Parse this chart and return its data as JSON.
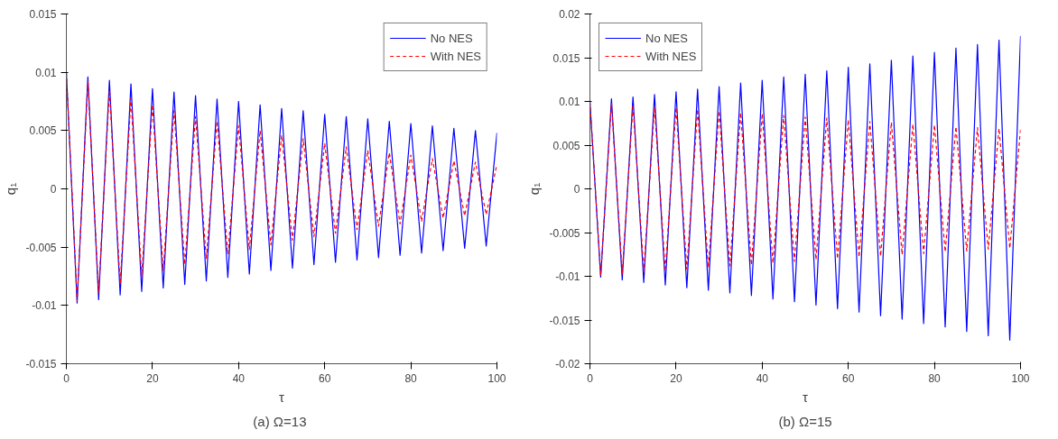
{
  "chart_data": [
    {
      "type": "line",
      "xlabel": "τ",
      "ylabel": "q₁",
      "annotations": [
        "(a)  Ω=13"
      ],
      "legend": "top right",
      "grid": false,
      "x": [
        0,
        2.5,
        5,
        7.5,
        10,
        12.5,
        15,
        17.5,
        20,
        22.5,
        25,
        27.5,
        30,
        32.5,
        35,
        37.5,
        40,
        42.5,
        45,
        47.5,
        50,
        52.5,
        55,
        57.5,
        60,
        62.5,
        65,
        67.5,
        70,
        72.5,
        75,
        77.5,
        80,
        82.5,
        85,
        87.5,
        90,
        92.5,
        95,
        97.5,
        100
      ],
      "xlim": [
        0,
        100
      ],
      "xticks": [
        0,
        20,
        40,
        60,
        80,
        100
      ],
      "ylim": [
        -0.015,
        0.015
      ],
      "yticks": [
        -0.015,
        -0.01,
        -0.005,
        0,
        0.005,
        0.01,
        0.015
      ],
      "series": [
        {
          "name": "No NES",
          "color": "#0000ff",
          "line_style": "solid",
          "values": [
            0.01,
            -0.0098,
            0.0096,
            -0.0095,
            0.0093,
            -0.0091,
            0.009,
            -0.0088,
            0.0086,
            -0.0085,
            0.0083,
            -0.0082,
            0.008,
            -0.0079,
            0.0077,
            -0.0076,
            0.0075,
            -0.0073,
            0.0072,
            -0.007,
            0.0069,
            -0.0068,
            0.0067,
            -0.0065,
            0.0064,
            -0.0063,
            0.0062,
            -0.0061,
            0.006,
            -0.0059,
            0.0058,
            -0.0057,
            0.0056,
            -0.0055,
            0.0054,
            -0.0053,
            0.0052,
            -0.0051,
            0.005,
            -0.0049,
            0.0048
          ]
        },
        {
          "name": "With NES",
          "color": "#ff0000",
          "line_style": "dashed",
          "values": [
            0.01,
            -0.0096,
            0.0092,
            -0.0089,
            0.0085,
            -0.0082,
            0.0078,
            -0.0075,
            0.0072,
            -0.007,
            0.0067,
            -0.0065,
            0.0062,
            -0.006,
            0.0058,
            -0.0056,
            0.0054,
            -0.0052,
            0.005,
            -0.0048,
            0.0046,
            -0.0044,
            0.0043,
            -0.0041,
            0.0039,
            -0.0038,
            0.0036,
            -0.0035,
            0.0033,
            -0.0032,
            0.0031,
            -0.003,
            0.0029,
            -0.0028,
            0.0026,
            -0.0025,
            0.0024,
            -0.0023,
            0.0023,
            -0.0022,
            0.0021
          ]
        }
      ]
    },
    {
      "type": "line",
      "xlabel": "τ",
      "ylabel": "q₁",
      "annotations": [
        "(b) Ω=15"
      ],
      "legend": "top left",
      "grid": false,
      "x": [
        0,
        2.5,
        5,
        7.5,
        10,
        12.5,
        15,
        17.5,
        20,
        22.5,
        25,
        27.5,
        30,
        32.5,
        35,
        37.5,
        40,
        42.5,
        45,
        47.5,
        50,
        52.5,
        55,
        57.5,
        60,
        62.5,
        65,
        67.5,
        70,
        72.5,
        75,
        77.5,
        80,
        82.5,
        85,
        87.5,
        90,
        92.5,
        95,
        97.5,
        100
      ],
      "xlim": [
        0,
        100
      ],
      "xticks": [
        0,
        20,
        40,
        60,
        80,
        100
      ],
      "ylim": [
        -0.02,
        0.02
      ],
      "yticks": [
        -0.02,
        -0.015,
        -0.01,
        -0.005,
        0,
        0.005,
        0.01,
        0.015,
        0.02
      ],
      "series": [
        {
          "name": "No NES",
          "color": "#0000ff",
          "line_style": "solid",
          "values": [
            0.01,
            -0.0101,
            0.0103,
            -0.0104,
            0.0105,
            -0.0107,
            0.0108,
            -0.011,
            0.0111,
            -0.0113,
            0.0114,
            -0.0116,
            0.0117,
            -0.0119,
            0.0121,
            -0.0122,
            0.0124,
            -0.0126,
            0.0128,
            -0.0129,
            0.0131,
            -0.0133,
            0.0135,
            -0.0137,
            0.0139,
            -0.0141,
            0.0143,
            -0.0145,
            0.0147,
            -0.0149,
            0.0152,
            -0.0154,
            0.0156,
            -0.0158,
            0.0161,
            -0.0163,
            0.0165,
            -0.0168,
            0.017,
            -0.0173,
            0.0175
          ]
        },
        {
          "name": "With NES",
          "color": "#ff0000",
          "line_style": "dashed",
          "values": [
            0.01,
            -0.0099,
            0.0098,
            -0.0097,
            0.0096,
            -0.0095,
            0.0094,
            -0.0094,
            0.0093,
            -0.0092,
            0.0091,
            -0.009,
            0.0089,
            -0.0088,
            0.0087,
            -0.0087,
            0.0086,
            -0.0085,
            0.0084,
            -0.0083,
            0.0082,
            -0.0081,
            0.0081,
            -0.008,
            0.0079,
            -0.0078,
            0.0077,
            -0.0077,
            0.0076,
            -0.0075,
            0.0074,
            -0.0074,
            0.0073,
            -0.0072,
            0.0071,
            -0.0071,
            0.007,
            -0.0069,
            0.0069,
            -0.0068,
            0.0068
          ]
        }
      ]
    }
  ]
}
